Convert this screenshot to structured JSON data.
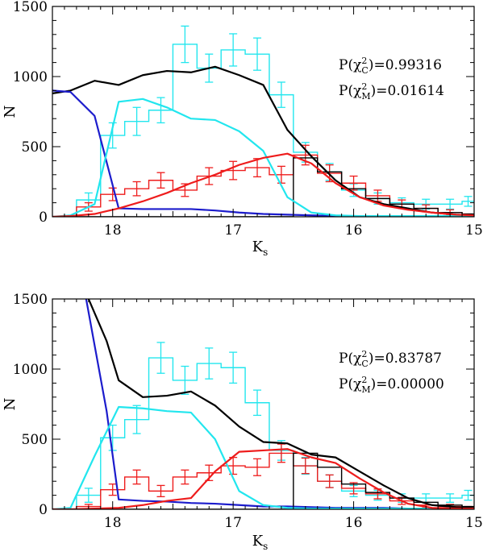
{
  "chart_data": [
    {
      "type": "line",
      "xlabel": "K",
      "xlabel_sub": "s",
      "ylabel": "N",
      "xlim": [
        18.5,
        15.0
      ],
      "ylim": [
        0,
        1500
      ],
      "xticks": [
        "18",
        "17",
        "16",
        "15"
      ],
      "xtick_values": [
        18,
        17,
        16,
        15
      ],
      "yticks": [
        "0",
        "500",
        "1000",
        "1500"
      ],
      "ytick_values": [
        0,
        500,
        1000,
        1500
      ],
      "annotations": [
        {
          "pre": "P(",
          "chi": "χ",
          "sup": "2",
          "sub": "C",
          "post": ")=0.99316"
        },
        {
          "pre": "P(",
          "chi": "χ",
          "sup": "2",
          "sub": "M",
          "post": ")=0.01614"
        }
      ],
      "colors": {
        "cyan": "#22e6ee",
        "red": "#ee1c1c",
        "black": "#000000",
        "blue": "#1c1ccc"
      },
      "histograms": [
        {
          "color": "cyan",
          "edges": [
            18.5,
            18.3,
            18.1,
            17.9,
            17.7,
            17.5,
            17.3,
            17.1,
            16.9,
            16.7,
            16.5,
            16.3,
            16.1,
            15.9,
            15.7,
            15.5,
            15.3,
            15.1,
            15.0
          ],
          "values": [
            0,
            120,
            580,
            680,
            760,
            1230,
            1060,
            1190,
            1160,
            870,
            460,
            320,
            190,
            130,
            100,
            90,
            90,
            110
          ],
          "errors": [
            0,
            50,
            90,
            100,
            90,
            130,
            100,
            115,
            115,
            90,
            70,
            60,
            45,
            40,
            35,
            35,
            35,
            35
          ]
        },
        {
          "color": "red",
          "edges": [
            18.5,
            18.3,
            18.1,
            17.9,
            17.7,
            17.5,
            17.3,
            17.1,
            16.9,
            16.7,
            16.5,
            16.3,
            16.1,
            15.9,
            15.7,
            15.5,
            15.3,
            15.1,
            15.0
          ],
          "values": [
            0,
            70,
            160,
            200,
            260,
            190,
            290,
            330,
            350,
            300,
            440,
            310,
            240,
            150,
            90,
            60,
            30,
            10
          ],
          "errors": [
            0,
            30,
            45,
            50,
            55,
            45,
            60,
            65,
            65,
            60,
            70,
            60,
            50,
            40,
            30,
            25,
            20,
            10
          ]
        },
        {
          "color": "black",
          "edges": [
            18.5,
            18.3,
            18.1,
            17.9,
            17.7,
            17.5,
            17.3,
            17.1,
            16.9,
            16.7,
            16.5,
            16.3,
            16.1,
            15.9,
            15.7,
            15.5,
            15.3,
            15.1,
            15.0
          ],
          "values": [
            0,
            0,
            0,
            0,
            0,
            0,
            0,
            0,
            0,
            0,
            420,
            320,
            200,
            130,
            90,
            60,
            30,
            20
          ],
          "errors": []
        }
      ],
      "series": [
        {
          "color": "black",
          "x": [
            18.5,
            18.35,
            18.15,
            17.95,
            17.75,
            17.55,
            17.35,
            17.15,
            16.95,
            16.75,
            16.55,
            16.35,
            16.15,
            15.95,
            15.75,
            15.55,
            15.35,
            15.15,
            15.0
          ],
          "y": [
            880,
            900,
            970,
            940,
            1010,
            1040,
            1030,
            1070,
            1010,
            940,
            620,
            430,
            260,
            140,
            90,
            60,
            30,
            15,
            10
          ]
        },
        {
          "color": "blue",
          "x": [
            18.5,
            18.35,
            18.15,
            17.95,
            17.75,
            17.55,
            17.35,
            17.15,
            16.95,
            16.75,
            16.55,
            16.35,
            16.15,
            15.95,
            15.75,
            15.55,
            15.35,
            15.15,
            15.0
          ],
          "y": [
            900,
            890,
            720,
            60,
            55,
            55,
            55,
            45,
            30,
            20,
            15,
            10,
            5,
            5,
            5,
            5,
            5,
            5,
            5
          ]
        },
        {
          "color": "cyan",
          "x": [
            18.5,
            18.35,
            18.15,
            17.95,
            17.75,
            17.55,
            17.35,
            17.15,
            16.95,
            16.75,
            16.55,
            16.35,
            16.15,
            15.95,
            15.75,
            15.55,
            15.35,
            15.15,
            15.0
          ],
          "y": [
            0,
            10,
            90,
            820,
            840,
            780,
            700,
            690,
            610,
            470,
            140,
            30,
            10,
            5,
            5,
            5,
            5,
            5,
            5
          ]
        },
        {
          "color": "red",
          "x": [
            18.5,
            18.35,
            18.15,
            17.95,
            17.75,
            17.55,
            17.35,
            17.15,
            16.95,
            16.75,
            16.55,
            16.35,
            16.15,
            15.95,
            15.75,
            15.55,
            15.35,
            15.15,
            15.0
          ],
          "y": [
            0,
            5,
            20,
            60,
            110,
            170,
            240,
            300,
            370,
            420,
            450,
            380,
            240,
            140,
            80,
            50,
            30,
            15,
            10
          ]
        }
      ]
    },
    {
      "type": "line",
      "xlabel": "K",
      "xlabel_sub": "s",
      "ylabel": "N",
      "xlim": [
        18.5,
        15.0
      ],
      "ylim": [
        0,
        1500
      ],
      "xticks": [
        "18",
        "17",
        "16",
        "15"
      ],
      "xtick_values": [
        18,
        17,
        16,
        15
      ],
      "yticks": [
        "0",
        "500",
        "1000",
        "1500"
      ],
      "ytick_values": [
        0,
        500,
        1000,
        1500
      ],
      "annotations": [
        {
          "pre": "P(",
          "chi": "χ",
          "sup": "2",
          "sub": "C",
          "post": ")=0.83787"
        },
        {
          "pre": "P(",
          "chi": "χ",
          "sup": "2",
          "sub": "M",
          "post": ")=0.00000"
        }
      ],
      "colors": {
        "cyan": "#22e6ee",
        "red": "#ee1c1c",
        "black": "#000000",
        "blue": "#1c1ccc"
      },
      "histograms": [
        {
          "color": "cyan",
          "edges": [
            18.5,
            18.3,
            18.1,
            17.9,
            17.7,
            17.5,
            17.3,
            17.1,
            16.9,
            16.7,
            16.5,
            16.3,
            16.1,
            15.9,
            15.7,
            15.5,
            15.3,
            15.1,
            15.0
          ],
          "values": [
            0,
            100,
            510,
            640,
            1080,
            920,
            1040,
            1010,
            760,
            420,
            310,
            200,
            130,
            100,
            80,
            80,
            80,
            100
          ],
          "errors": [
            0,
            50,
            90,
            100,
            110,
            100,
            110,
            110,
            90,
            70,
            60,
            45,
            40,
            35,
            30,
            30,
            30,
            35
          ]
        },
        {
          "color": "red",
          "edges": [
            18.5,
            18.3,
            18.1,
            17.9,
            17.7,
            17.5,
            17.3,
            17.1,
            16.9,
            16.7,
            16.5,
            16.3,
            16.1,
            15.9,
            15.7,
            15.5,
            15.3,
            15.1,
            15.0
          ],
          "values": [
            0,
            20,
            140,
            230,
            130,
            230,
            260,
            310,
            300,
            400,
            310,
            200,
            150,
            110,
            60,
            30,
            20,
            10
          ],
          "errors": [
            0,
            15,
            40,
            50,
            40,
            50,
            55,
            60,
            60,
            65,
            55,
            45,
            40,
            35,
            25,
            20,
            15,
            10
          ]
        },
        {
          "color": "black",
          "edges": [
            18.5,
            18.3,
            18.1,
            17.9,
            17.7,
            17.5,
            17.3,
            17.1,
            16.9,
            16.7,
            16.5,
            16.3,
            16.1,
            15.9,
            15.7,
            15.5,
            15.3,
            15.1,
            15.0
          ],
          "values": [
            0,
            0,
            0,
            0,
            0,
            0,
            0,
            0,
            0,
            0,
            400,
            300,
            180,
            120,
            80,
            50,
            30,
            20
          ],
          "errors": []
        }
      ],
      "series": [
        {
          "color": "black",
          "x": [
            18.2,
            18.05,
            17.95,
            17.75,
            17.55,
            17.35,
            17.15,
            16.95,
            16.75,
            16.55,
            16.35,
            16.15,
            15.95,
            15.75,
            15.55,
            15.35,
            15.15,
            15.0
          ],
          "y": [
            1500,
            1200,
            920,
            800,
            810,
            840,
            740,
            590,
            480,
            470,
            390,
            370,
            270,
            170,
            80,
            30,
            15,
            10
          ]
        },
        {
          "color": "blue",
          "x": [
            18.22,
            18.05,
            17.95,
            17.75,
            17.55,
            17.35,
            17.15,
            16.95,
            16.75,
            16.55,
            16.35,
            16.15,
            15.95,
            15.75,
            15.55,
            15.35,
            15.15,
            15.0
          ],
          "y": [
            1500,
            700,
            70,
            60,
            55,
            45,
            40,
            30,
            20,
            20,
            15,
            10,
            10,
            10,
            5,
            5,
            5,
            5
          ]
        },
        {
          "color": "cyan",
          "x": [
            18.5,
            18.35,
            18.15,
            17.95,
            17.75,
            17.55,
            17.35,
            17.15,
            16.95,
            16.75,
            16.55,
            16.35,
            16.15,
            15.95,
            15.75,
            15.55,
            15.35,
            15.15,
            15.0
          ],
          "y": [
            0,
            10,
            380,
            730,
            720,
            700,
            690,
            500,
            130,
            30,
            10,
            5,
            5,
            5,
            5,
            5,
            5,
            5,
            5
          ]
        },
        {
          "color": "red",
          "x": [
            18.5,
            18.35,
            18.15,
            17.95,
            17.75,
            17.55,
            17.35,
            17.15,
            16.95,
            16.75,
            16.55,
            16.35,
            16.15,
            15.95,
            15.75,
            15.55,
            15.35,
            15.15,
            15.0
          ],
          "y": [
            0,
            0,
            5,
            10,
            30,
            60,
            80,
            270,
            410,
            420,
            430,
            370,
            330,
            220,
            120,
            40,
            10,
            5,
            5
          ]
        }
      ]
    }
  ]
}
